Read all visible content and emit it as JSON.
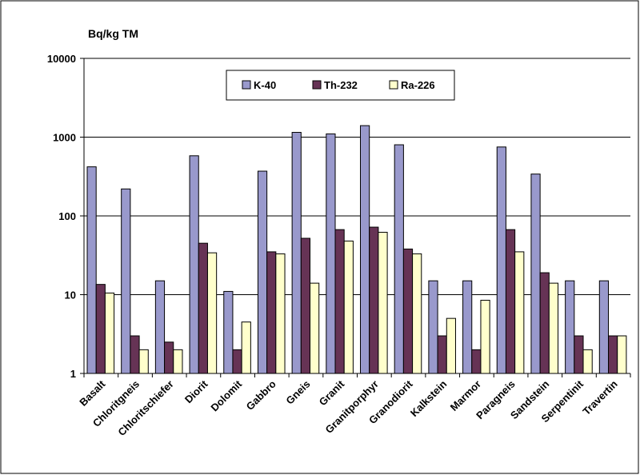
{
  "chart_data": {
    "type": "bar",
    "title": "",
    "unit_label": "Bq/kg TM",
    "xlabel": "",
    "ylabel": "",
    "yscale": "log",
    "ylim": [
      1,
      10000
    ],
    "yticks": [
      1,
      10,
      100,
      1000,
      10000
    ],
    "ytick_labels": [
      "1",
      "10",
      "100",
      "1000",
      "10000"
    ],
    "grid": "horizontal",
    "legend_position": "top-center",
    "categories": [
      "Basalt",
      "Chloritgneis",
      "Chloritschiefer",
      "Diorit",
      "Dolomit",
      "Gabbro",
      "Gneis",
      "Granit",
      "Granitporphyr",
      "Granodiorit",
      "Kalkstein",
      "Marmor",
      "Paragneis",
      "Sandstein",
      "Serpentinit",
      "Travertin"
    ],
    "series": [
      {
        "name": "K-40",
        "color": "#9999cc",
        "values": [
          420,
          220,
          15,
          580,
          11,
          370,
          1150,
          1100,
          1400,
          800,
          15,
          15,
          750,
          340,
          15,
          15
        ]
      },
      {
        "name": "Th-232",
        "color": "#663355",
        "values": [
          13.5,
          3,
          2.5,
          45,
          2,
          35,
          52,
          67,
          72,
          38,
          3,
          2,
          67,
          19,
          3,
          3
        ]
      },
      {
        "name": "Ra-226",
        "color": "#ffffcc",
        "values": [
          10.5,
          2,
          2,
          34,
          4.5,
          33,
          14,
          48,
          62,
          33,
          5,
          8.5,
          35,
          14,
          2,
          3
        ]
      }
    ]
  }
}
